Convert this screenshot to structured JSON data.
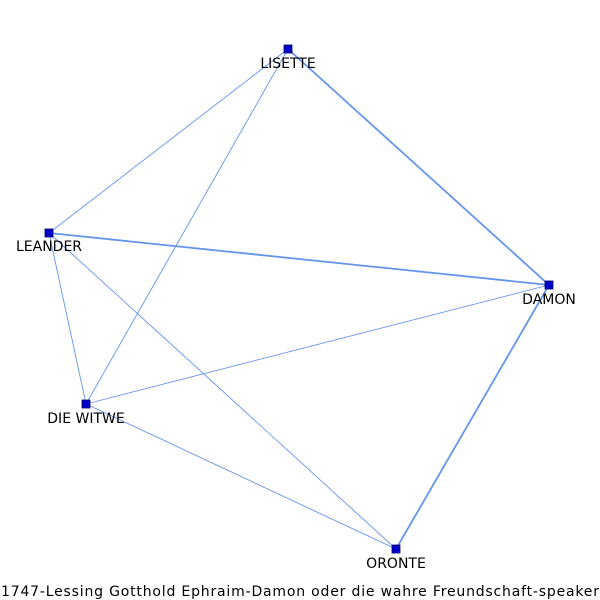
{
  "caption": "1747-Lessing Gotthold Ephraim-Damon oder die wahre Freundschaft-speaker",
  "colors": {
    "edge": "#6495ED",
    "node_fill": "#0000CC",
    "node_stroke": "#000066",
    "label": "#000000"
  },
  "nodes": [
    {
      "id": "LISETTE",
      "label": "LISETTE"
    },
    {
      "id": "LEANDER",
      "label": "LEANDER"
    },
    {
      "id": "DAMON",
      "label": "DAMON"
    },
    {
      "id": "DIE WITWE",
      "label": "DIE WITWE"
    },
    {
      "id": "ORONTE",
      "label": "ORONTE"
    }
  ],
  "edges": [
    {
      "source": "LISETTE",
      "target": "DAMON",
      "weight": 2
    },
    {
      "source": "LISETTE",
      "target": "LEANDER",
      "weight": 1
    },
    {
      "source": "LISETTE",
      "target": "DIE WITWE",
      "weight": 1
    },
    {
      "source": "LEANDER",
      "target": "DAMON",
      "weight": 2
    },
    {
      "source": "LEANDER",
      "target": "DIE WITWE",
      "weight": 1
    },
    {
      "source": "LEANDER",
      "target": "ORONTE",
      "weight": 1
    },
    {
      "source": "DAMON",
      "target": "DIE WITWE",
      "weight": 1
    },
    {
      "source": "DAMON",
      "target": "ORONTE",
      "weight": 2
    },
    {
      "source": "DIE WITWE",
      "target": "ORONTE",
      "weight": 1
    }
  ]
}
